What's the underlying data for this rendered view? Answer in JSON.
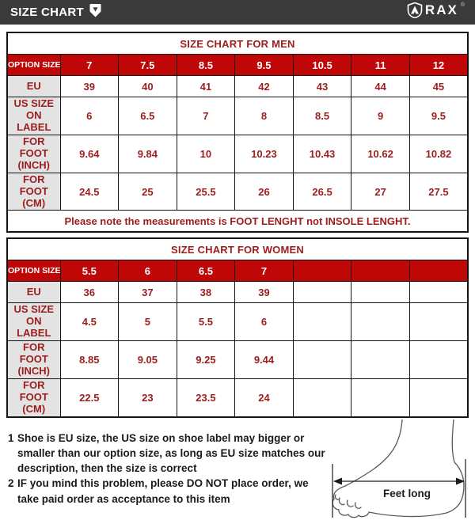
{
  "header": {
    "title": "SIZE CHART",
    "title_icon": "pin-badge-icon",
    "brand": "RAX",
    "brand_mark": "®",
    "brand_icon": "shield-logo-icon"
  },
  "colors": {
    "bar_bg": "#3a3a3a",
    "red": "#c00707",
    "dark_red": "#9d1d1d",
    "label_bg": "#e3e3e3",
    "border": "#141414"
  },
  "men_table": {
    "title": "SIZE CHART FOR MEN",
    "option_row": {
      "label": "OPTION SIZE",
      "values": [
        "7",
        "7.5",
        "8.5",
        "9.5",
        "10.5",
        "11",
        "12"
      ]
    },
    "rows": [
      {
        "label": "EU",
        "values": [
          "39",
          "40",
          "41",
          "42",
          "43",
          "44",
          "45"
        ]
      },
      {
        "label": "US SIZE ON LABEL",
        "values": [
          "6",
          "6.5",
          "7",
          "8",
          "8.5",
          "9",
          "9.5"
        ]
      },
      {
        "label": "FOR FOOT (INCH)",
        "values": [
          "9.64",
          "9.84",
          "10",
          "10.23",
          "10.43",
          "10.62",
          "10.82"
        ]
      },
      {
        "label": "FOR FOOT (CM)",
        "values": [
          "24.5",
          "25",
          "25.5",
          "26",
          "26.5",
          "27",
          "27.5"
        ]
      }
    ],
    "note": "Please note the measurements is FOOT LENGHT not INSOLE LENGHT."
  },
  "women_table": {
    "title": "SIZE CHART FOR WOMEN",
    "option_row": {
      "label": "OPTION SIZE",
      "values": [
        "5.5",
        "6",
        "6.5",
        "7",
        "",
        "",
        ""
      ]
    },
    "rows": [
      {
        "label": "EU",
        "values": [
          "36",
          "37",
          "38",
          "39",
          "",
          "",
          ""
        ]
      },
      {
        "label": "US SIZE ON LABEL",
        "values": [
          "4.5",
          "5",
          "5.5",
          "6",
          "",
          "",
          ""
        ]
      },
      {
        "label": "FOR FOOT (INCH)",
        "values": [
          "8.85",
          "9.05",
          "9.25",
          "9.44",
          "",
          "",
          ""
        ]
      },
      {
        "label": "FOR FOOT (CM)",
        "values": [
          "22.5",
          "23",
          "23.5",
          "24",
          "",
          "",
          ""
        ]
      }
    ]
  },
  "notes": [
    {
      "num": "1",
      "text": "Shoe is EU size, the US size on shoe label may bigger or smaller than our option size, as long as EU size matches our description, then the size is correct"
    },
    {
      "num": "2",
      "text": "IF you mind this problem, please DO NOT place order, we take paid order as acceptance to this item"
    }
  ],
  "diagram": {
    "label": "Feet long",
    "description": "foot-side-view-length-measurement"
  }
}
